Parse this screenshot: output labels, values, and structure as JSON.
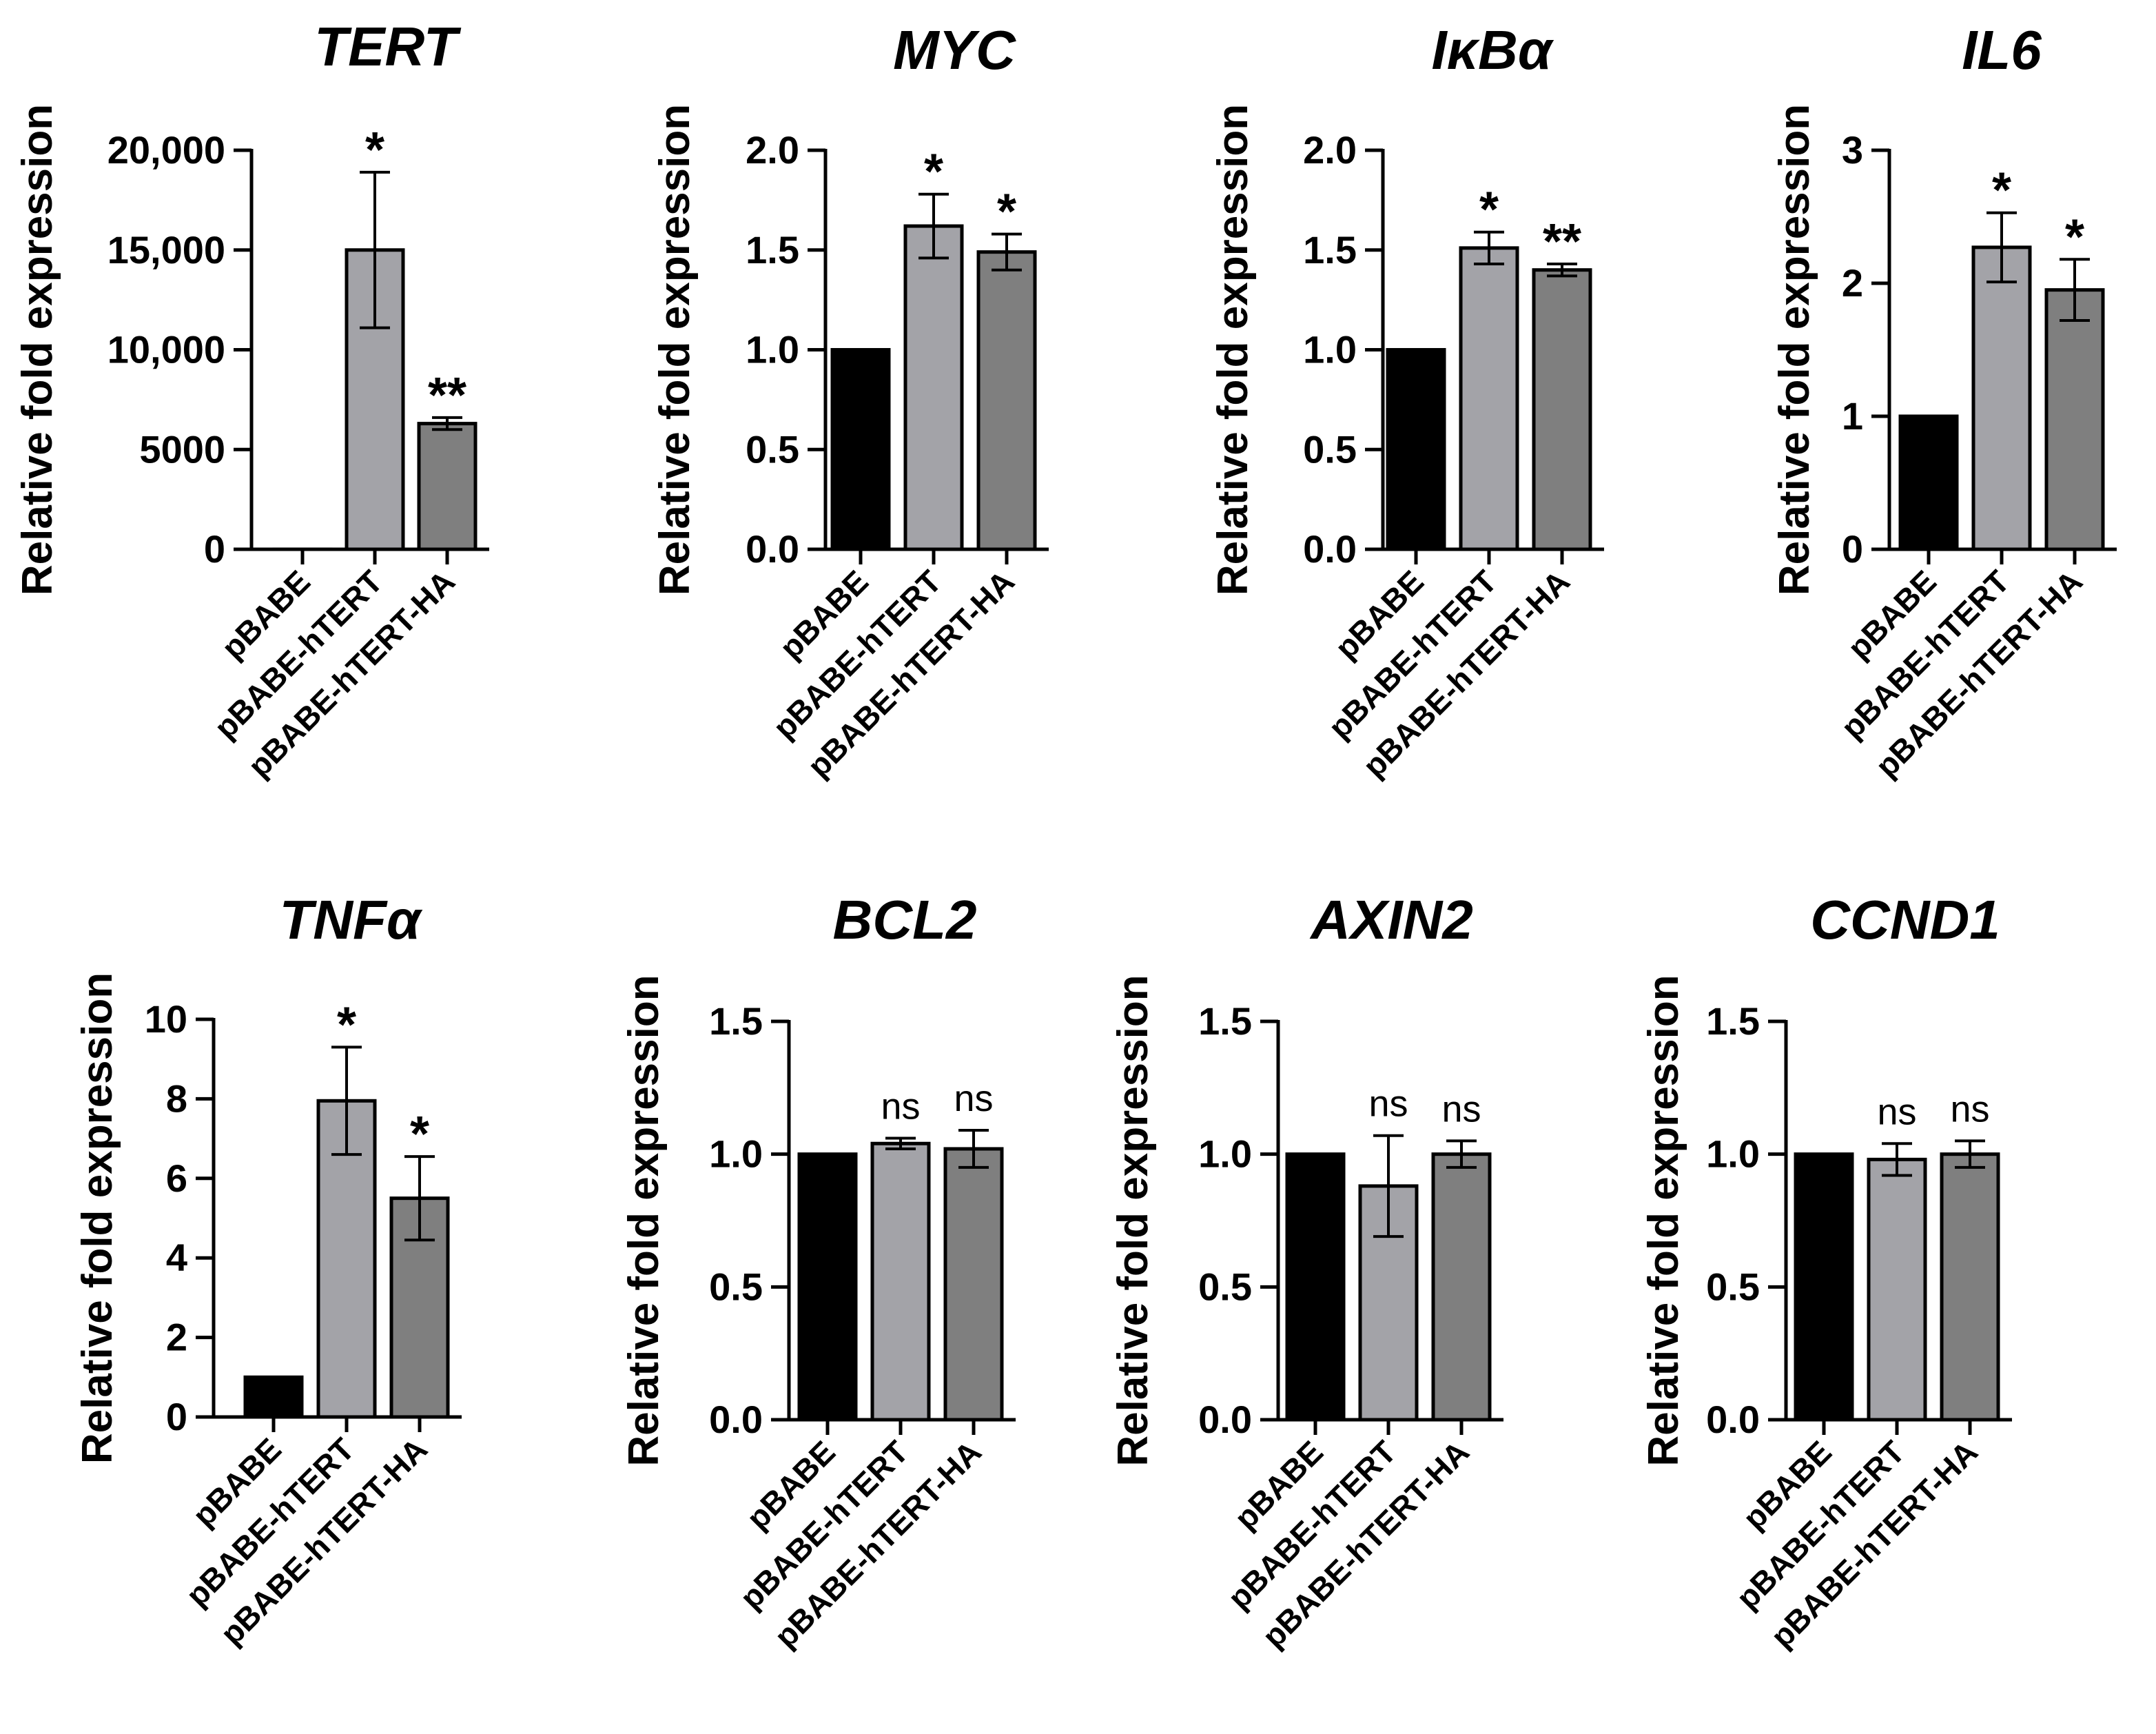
{
  "chart_data": [
    {
      "type": "bar",
      "title": "TERT",
      "ylabel": "Relative fold expression",
      "categories": [
        "pBABE",
        "pBABE-hTERT",
        "pBABE-hTERT-HA"
      ],
      "values": [
        1,
        15000,
        6300
      ],
      "errors": [
        0,
        3900,
        300
      ],
      "significance": [
        "",
        "*",
        "**"
      ],
      "ylim": [
        0,
        20000
      ],
      "yticks": [
        0,
        5000,
        10000,
        15000,
        20000
      ],
      "ytick_labels": [
        "0",
        "5000",
        "10,000",
        "15,000",
        "20,000"
      ],
      "colors": [
        "#000000",
        "#a3a3a8",
        "#7f7f7f"
      ]
    },
    {
      "type": "bar",
      "title": "MYC",
      "ylabel": "Relative fold expression",
      "categories": [
        "pBABE",
        "pBABE-hTERT",
        "pBABE-hTERT-HA"
      ],
      "values": [
        1.0,
        1.62,
        1.49
      ],
      "errors": [
        0,
        0.16,
        0.09
      ],
      "significance": [
        "",
        "*",
        "*"
      ],
      "ylim": [
        0,
        2.0
      ],
      "yticks": [
        0,
        0.5,
        1.0,
        1.5,
        2.0
      ],
      "ytick_labels": [
        "0.0",
        "0.5",
        "1.0",
        "1.5",
        "2.0"
      ],
      "colors": [
        "#000000",
        "#a3a3a8",
        "#7f7f7f"
      ]
    },
    {
      "type": "bar",
      "title": "IκBα",
      "ylabel": "Relative fold expression",
      "categories": [
        "pBABE",
        "pBABE-hTERT",
        "pBABE-hTERT-HA"
      ],
      "values": [
        1.0,
        1.51,
        1.4
      ],
      "errors": [
        0,
        0.08,
        0.03
      ],
      "significance": [
        "",
        "*",
        "**"
      ],
      "ylim": [
        0,
        2.0
      ],
      "yticks": [
        0,
        0.5,
        1.0,
        1.5,
        2.0
      ],
      "ytick_labels": [
        "0.0",
        "0.5",
        "1.0",
        "1.5",
        "2.0"
      ],
      "colors": [
        "#000000",
        "#a3a3a8",
        "#7f7f7f"
      ]
    },
    {
      "type": "bar",
      "title": "IL6",
      "ylabel": "Relative fold expression",
      "categories": [
        "pBABE",
        "pBABE-hTERT",
        "pBABE-hTERT-HA"
      ],
      "values": [
        1.0,
        2.27,
        1.95
      ],
      "errors": [
        0,
        0.26,
        0.23
      ],
      "significance": [
        "",
        "*",
        "*"
      ],
      "ylim": [
        0,
        3
      ],
      "yticks": [
        0,
        1,
        2,
        3
      ],
      "ytick_labels": [
        "0",
        "1",
        "2",
        "3"
      ],
      "colors": [
        "#000000",
        "#a3a3a8",
        "#7f7f7f"
      ]
    },
    {
      "type": "bar",
      "title": "TNFα",
      "ylabel": "Relative fold expression",
      "categories": [
        "pBABE",
        "pBABE-hTERT",
        "pBABE-hTERT-HA"
      ],
      "values": [
        1.0,
        7.95,
        5.5
      ],
      "errors": [
        0,
        1.35,
        1.05
      ],
      "significance": [
        "",
        "*",
        "*"
      ],
      "ylim": [
        0,
        10
      ],
      "yticks": [
        0,
        2,
        4,
        6,
        8,
        10
      ],
      "ytick_labels": [
        "0",
        "2",
        "4",
        "6",
        "8",
        "10"
      ],
      "colors": [
        "#000000",
        "#a3a3a8",
        "#7f7f7f"
      ]
    },
    {
      "type": "bar",
      "title": "BCL2",
      "ylabel": "Relative fold expression",
      "categories": [
        "pBABE",
        "pBABE-hTERT",
        "pBABE-hTERT-HA"
      ],
      "values": [
        1.0,
        1.04,
        1.02
      ],
      "errors": [
        0,
        0.02,
        0.07
      ],
      "significance": [
        "",
        "ns",
        "ns"
      ],
      "ylim": [
        0,
        1.5
      ],
      "yticks": [
        0,
        0.5,
        1.0,
        1.5
      ],
      "ytick_labels": [
        "0.0",
        "0.5",
        "1.0",
        "1.5"
      ],
      "colors": [
        "#000000",
        "#a3a3a8",
        "#7f7f7f"
      ]
    },
    {
      "type": "bar",
      "title": "AXIN2",
      "ylabel": "Relative fold expression",
      "categories": [
        "pBABE",
        "pBABE-hTERT",
        "pBABE-hTERT-HA"
      ],
      "values": [
        1.0,
        0.88,
        1.0
      ],
      "errors": [
        0,
        0.19,
        0.05
      ],
      "significance": [
        "",
        "ns",
        "ns"
      ],
      "ylim": [
        0,
        1.5
      ],
      "yticks": [
        0,
        0.5,
        1.0,
        1.5
      ],
      "ytick_labels": [
        "0.0",
        "0.5",
        "1.0",
        "1.5"
      ],
      "colors": [
        "#000000",
        "#a3a3a8",
        "#7f7f7f"
      ]
    },
    {
      "type": "bar",
      "title": "CCND1",
      "ylabel": "Relative fold expression",
      "categories": [
        "pBABE",
        "pBABE-hTERT",
        "pBABE-hTERT-HA"
      ],
      "values": [
        1.0,
        0.98,
        1.0
      ],
      "errors": [
        0,
        0.06,
        0.05
      ],
      "significance": [
        "",
        "ns",
        "ns"
      ],
      "ylim": [
        0,
        1.5
      ],
      "yticks": [
        0,
        0.5,
        1.0,
        1.5
      ],
      "ytick_labels": [
        "0.0",
        "0.5",
        "1.0",
        "1.5"
      ],
      "colors": [
        "#000000",
        "#a3a3a8",
        "#7f7f7f"
      ]
    }
  ]
}
